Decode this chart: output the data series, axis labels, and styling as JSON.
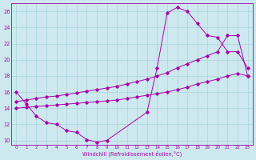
{
  "xlabel": "Windchill (Refroidissement éolien,°C)",
  "background_color": "#cde8ee",
  "grid_color": "#b0d8e0",
  "line_color": "#aa00aa",
  "xlim": [
    -0.5,
    23.5
  ],
  "ylim": [
    9.5,
    27.0
  ],
  "xticks": [
    0,
    1,
    2,
    3,
    4,
    5,
    6,
    7,
    8,
    9,
    10,
    11,
    12,
    13,
    14,
    15,
    16,
    17,
    18,
    19,
    20,
    21,
    22,
    23
  ],
  "yticks": [
    10,
    12,
    14,
    16,
    18,
    20,
    22,
    24,
    26
  ],
  "curves": [
    {
      "x": [
        0,
        1,
        2,
        3,
        4,
        5,
        6,
        7,
        8,
        9,
        13,
        14,
        15,
        16,
        17,
        18,
        19,
        20,
        21,
        22,
        23
      ],
      "y": [
        16.0,
        14.5,
        13.0,
        12.2,
        12.0,
        11.2,
        11.0,
        10.1,
        9.8,
        10.0,
        13.5,
        19.0,
        25.8,
        26.5,
        26.0,
        24.5,
        23.0,
        22.8,
        21.0,
        21.0,
        19.0
      ]
    },
    {
      "x": [
        0,
        1,
        2,
        3,
        4,
        5,
        6,
        7,
        8,
        9,
        10,
        11,
        12,
        13,
        14,
        15,
        16,
        17,
        18,
        19,
        20,
        21,
        22,
        23
      ],
      "y": [
        14.8,
        15.0,
        15.2,
        15.4,
        15.5,
        15.7,
        15.9,
        16.1,
        16.3,
        16.5,
        16.7,
        17.0,
        17.3,
        17.6,
        18.0,
        18.4,
        19.0,
        19.5,
        20.0,
        20.5,
        21.0,
        23.0,
        23.0,
        18.0
      ]
    },
    {
      "x": [
        0,
        1,
        2,
        3,
        4,
        5,
        6,
        7,
        8,
        9,
        10,
        11,
        12,
        13,
        14,
        15,
        16,
        17,
        18,
        19,
        20,
        21,
        22,
        23
      ],
      "y": [
        14.0,
        14.1,
        14.2,
        14.3,
        14.4,
        14.5,
        14.6,
        14.7,
        14.8,
        14.9,
        15.0,
        15.2,
        15.4,
        15.6,
        15.8,
        16.0,
        16.3,
        16.6,
        17.0,
        17.3,
        17.6,
        18.0,
        18.3,
        18.0
      ]
    }
  ]
}
